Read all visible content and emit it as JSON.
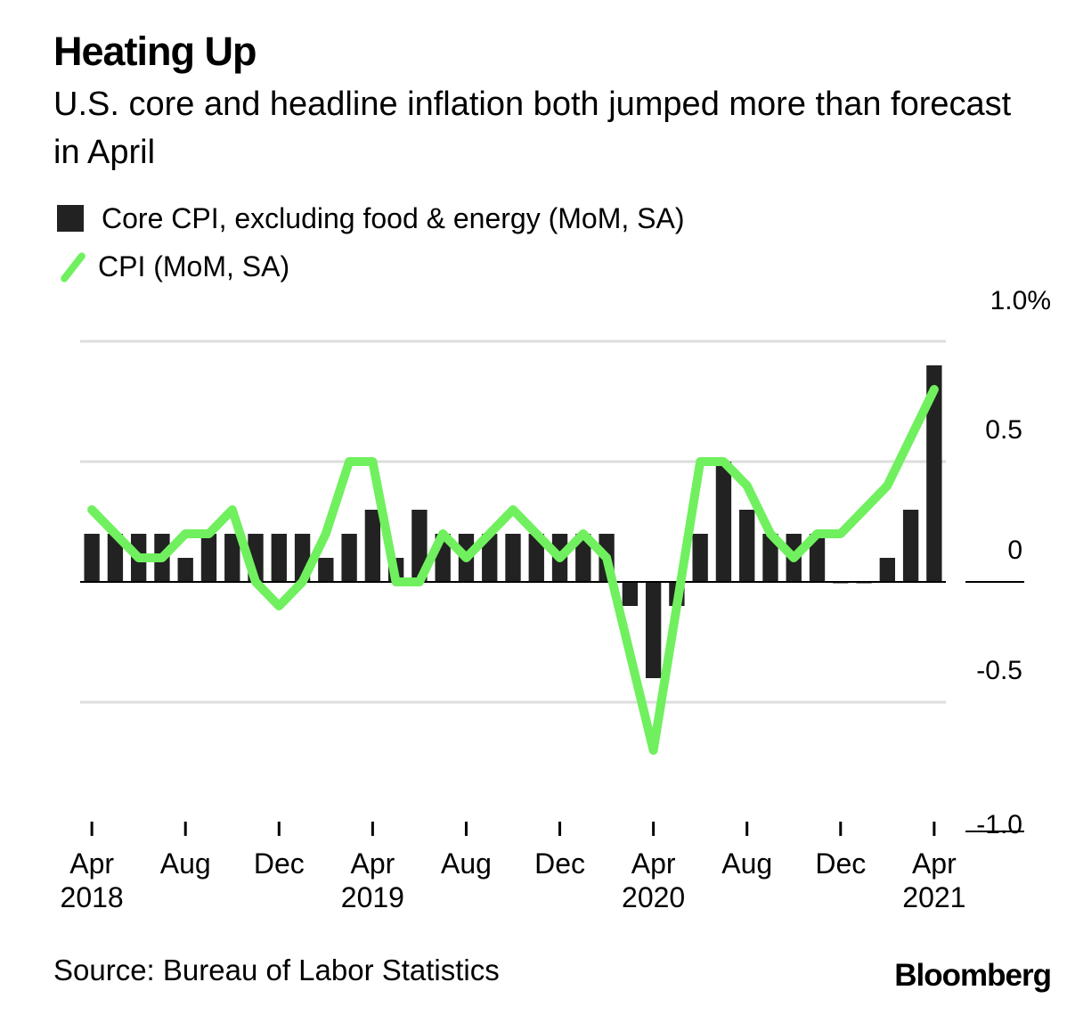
{
  "title": "Heating Up",
  "subtitle": "U.S. core and headline inflation both jumped more than forecast in April",
  "source": "Source: Bureau of Labor Statistics",
  "brand": "Bloomberg",
  "colors": {
    "core_bar": "#222222",
    "cpi_line": "#70f05e",
    "grid": "#dddddd"
  },
  "chart_data": {
    "type": "bar",
    "x": [
      "2018-04",
      "2018-05",
      "2018-06",
      "2018-07",
      "2018-08",
      "2018-09",
      "2018-10",
      "2018-11",
      "2018-12",
      "2019-01",
      "2019-02",
      "2019-03",
      "2019-04",
      "2019-05",
      "2019-06",
      "2019-07",
      "2019-08",
      "2019-09",
      "2019-10",
      "2019-11",
      "2019-12",
      "2020-01",
      "2020-02",
      "2020-03",
      "2020-04",
      "2020-05",
      "2020-06",
      "2020-07",
      "2020-08",
      "2020-09",
      "2020-10",
      "2020-11",
      "2020-12",
      "2021-01",
      "2021-02",
      "2021-03",
      "2021-04"
    ],
    "series": [
      {
        "name": "Core CPI, excluding food & energy (MoM, SA)",
        "type": "bar",
        "values": [
          0.2,
          0.2,
          0.2,
          0.2,
          0.1,
          0.2,
          0.2,
          0.2,
          0.2,
          0.2,
          0.1,
          0.2,
          0.3,
          0.1,
          0.3,
          0.2,
          0.2,
          0.2,
          0.2,
          0.2,
          0.2,
          0.2,
          0.2,
          -0.1,
          -0.4,
          -0.1,
          0.2,
          0.5,
          0.3,
          0.2,
          0.2,
          0.2,
          0.0,
          0.0,
          0.1,
          0.3,
          0.9
        ]
      },
      {
        "name": "CPI (MoM, SA)",
        "type": "line",
        "values": [
          0.3,
          0.2,
          0.1,
          0.1,
          0.2,
          0.2,
          0.3,
          0.0,
          -0.1,
          0.0,
          0.2,
          0.5,
          0.5,
          0.0,
          0.0,
          0.2,
          0.1,
          0.2,
          0.3,
          0.2,
          0.1,
          0.2,
          0.1,
          -0.3,
          -0.7,
          -0.1,
          0.5,
          0.5,
          0.4,
          0.2,
          0.1,
          0.2,
          0.2,
          0.3,
          0.4,
          0.6,
          0.8
        ]
      }
    ],
    "y_ticks": [
      "1.0%",
      "0.5",
      "0",
      "-0.5",
      "-1.0"
    ],
    "y_tick_values": [
      1.0,
      0.5,
      0,
      -0.5,
      -1.0
    ],
    "ylim": [
      -1.0,
      1.0
    ],
    "x_ticks": [
      {
        "month": "Apr",
        "year": "2018",
        "x": "2018-04"
      },
      {
        "month": "Aug",
        "year": "",
        "x": "2018-08"
      },
      {
        "month": "Dec",
        "year": "",
        "x": "2018-12"
      },
      {
        "month": "Apr",
        "year": "2019",
        "x": "2019-04"
      },
      {
        "month": "Aug",
        "year": "",
        "x": "2019-08"
      },
      {
        "month": "Dec",
        "year": "",
        "x": "2019-12"
      },
      {
        "month": "Apr",
        "year": "2020",
        "x": "2020-04"
      },
      {
        "month": "Aug",
        "year": "",
        "x": "2020-08"
      },
      {
        "month": "Dec",
        "year": "",
        "x": "2020-12"
      },
      {
        "month": "Apr",
        "year": "2021",
        "x": "2021-04"
      }
    ],
    "grid": true,
    "legend": "top-left"
  }
}
